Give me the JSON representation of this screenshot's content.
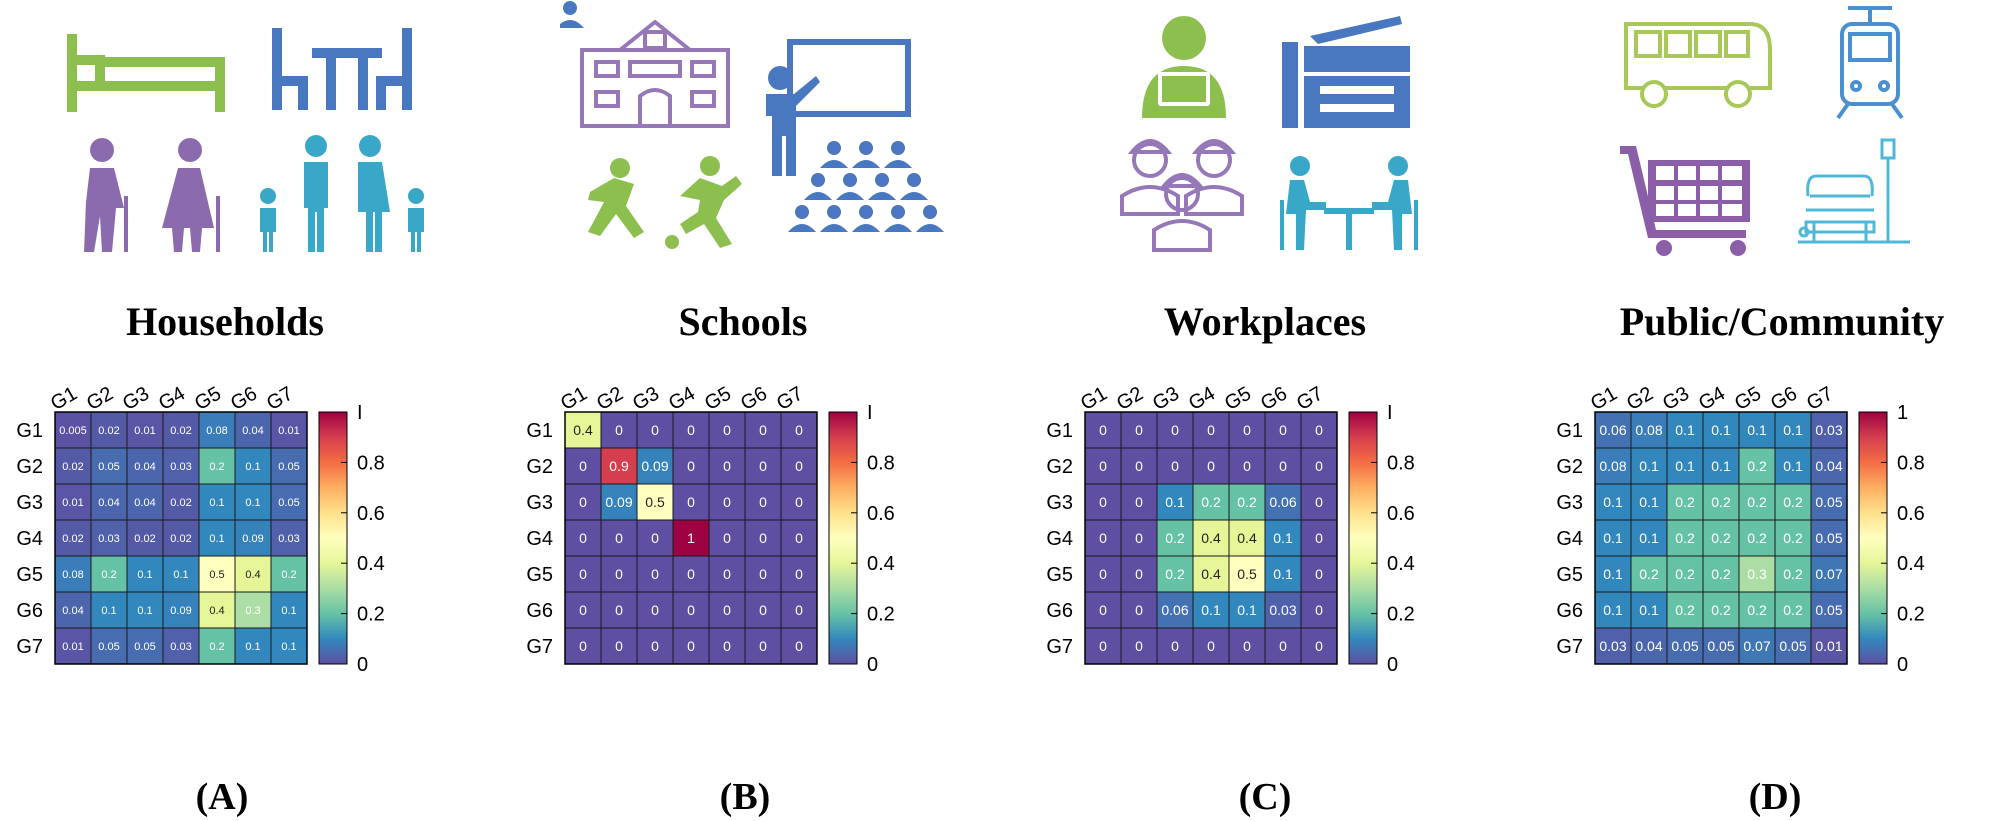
{
  "colors": {
    "householdsIcons": "#8DBF4F",
    "householdsIcons2": "#4A78C0",
    "householdsIcons3": "#8B6AAE",
    "householdsIcons4": "#39A8C8",
    "schoolsIcons": "#9678B8",
    "schoolsIcons2": "#4A78C0",
    "schoolsIcons3": "#8DBF4F",
    "workplacesIcons": "#8DBF4F",
    "workplacesIcons2": "#4A78C0",
    "workplacesIcons3": "#9678B8",
    "workplacesIcons4": "#39A8C8",
    "publicIcons": "#A8C85A",
    "publicIcons2": "#4A8FD0",
    "publicIcons3": "#8B5FA8",
    "publicIcons4": "#4FB8D8"
  },
  "icons": {
    "households": [
      "bed-icon",
      "dining-table-icon",
      "elderly-couple-icon",
      "family-icon"
    ],
    "schools": [
      "school-building-icon",
      "teacher-classroom-icon",
      "kids-playing-football-icon",
      "audience-icon"
    ],
    "workplaces": [
      "programmer-laptop-icon",
      "office-printer-icon",
      "workers-hardhat-icon",
      "meeting-table-icon"
    ],
    "public": [
      "bus-icon",
      "tram-icon",
      "shopping-cart-icon",
      "park-bench-icon"
    ]
  },
  "panels": [
    {
      "title": "Households",
      "caption": "(A)"
    },
    {
      "title": "Schools",
      "caption": "(B)"
    },
    {
      "title": "Workplaces",
      "caption": "(C)"
    },
    {
      "title": "Public/Community",
      "caption": "(D)"
    }
  ],
  "chart_data": [
    {
      "type": "heatmap",
      "title": "Households",
      "x": [
        "G1",
        "G2",
        "G3",
        "G4",
        "G5",
        "G6",
        "G7"
      ],
      "y": [
        "G1",
        "G2",
        "G3",
        "G4",
        "G5",
        "G6",
        "G7"
      ],
      "values": [
        [
          "0.005",
          "0.02",
          "0.01",
          "0.02",
          "0.08",
          "0.04",
          "0.01"
        ],
        [
          "0.02",
          "0.05",
          "0.04",
          "0.03",
          "0.2",
          "0.1",
          "0.05"
        ],
        [
          "0.01",
          "0.04",
          "0.04",
          "0.02",
          "0.1",
          "0.1",
          "0.05"
        ],
        [
          "0.02",
          "0.03",
          "0.02",
          "0.02",
          "0.1",
          "0.09",
          "0.03"
        ],
        [
          "0.08",
          "0.2",
          "0.1",
          "0.1",
          "0.5",
          "0.4",
          "0.2"
        ],
        [
          "0.04",
          "0.1",
          "0.1",
          "0.09",
          "0.4",
          "0.3",
          "0.1"
        ],
        [
          "0.01",
          "0.05",
          "0.05",
          "0.03",
          "0.2",
          "0.1",
          "0.1"
        ]
      ],
      "colorbar_ticks": [
        "0",
        "0.2",
        "0.4",
        "0.6",
        "0.8",
        "I"
      ],
      "colorbar_range": [
        0,
        1
      ],
      "colormap": "spectral-reversed"
    },
    {
      "type": "heatmap",
      "title": "Schools",
      "x": [
        "G1",
        "G2",
        "G3",
        "G4",
        "G5",
        "G6",
        "G7"
      ],
      "y": [
        "G1",
        "G2",
        "G3",
        "G4",
        "G5",
        "G6",
        "G7"
      ],
      "values": [
        [
          "0.4",
          "0",
          "0",
          "0",
          "0",
          "0",
          "0"
        ],
        [
          "0",
          "0.9",
          "0.09",
          "0",
          "0",
          "0",
          "0"
        ],
        [
          "0",
          "0.09",
          "0.5",
          "0",
          "0",
          "0",
          "0"
        ],
        [
          "0",
          "0",
          "0",
          "1",
          "0",
          "0",
          "0"
        ],
        [
          "0",
          "0",
          "0",
          "0",
          "0",
          "0",
          "0"
        ],
        [
          "0",
          "0",
          "0",
          "0",
          "0",
          "0",
          "0"
        ],
        [
          "0",
          "0",
          "0",
          "0",
          "0",
          "0",
          "0"
        ]
      ],
      "colorbar_ticks": [
        "0",
        "0.2",
        "0.4",
        "0.6",
        "0.8",
        "I"
      ],
      "colorbar_range": [
        0,
        1
      ],
      "colormap": "spectral-reversed"
    },
    {
      "type": "heatmap",
      "title": "Workplaces",
      "x": [
        "G1",
        "G2",
        "G3",
        "G4",
        "G5",
        "G6",
        "G7"
      ],
      "y": [
        "G1",
        "G2",
        "G3",
        "G4",
        "G5",
        "G6",
        "G7"
      ],
      "values": [
        [
          "0",
          "0",
          "0",
          "0",
          "0",
          "0",
          "0"
        ],
        [
          "0",
          "0",
          "0",
          "0",
          "0",
          "0",
          "0"
        ],
        [
          "0",
          "0",
          "0.1",
          "0.2",
          "0.2",
          "0.06",
          "0"
        ],
        [
          "0",
          "0",
          "0.2",
          "0.4",
          "0.4",
          "0.1",
          "0"
        ],
        [
          "0",
          "0",
          "0.2",
          "0.4",
          "0.5",
          "0.1",
          "0"
        ],
        [
          "0",
          "0",
          "0.06",
          "0.1",
          "0.1",
          "0.03",
          "0"
        ],
        [
          "0",
          "0",
          "0",
          "0",
          "0",
          "0",
          "0"
        ]
      ],
      "colorbar_ticks": [
        "0",
        "0.2",
        "0.4",
        "0.6",
        "0.8",
        "I"
      ],
      "colorbar_range": [
        0,
        1
      ],
      "colormap": "spectral-reversed"
    },
    {
      "type": "heatmap",
      "title": "Public/Community",
      "x": [
        "G1",
        "G2",
        "G3",
        "G4",
        "G5",
        "G6",
        "G7"
      ],
      "y": [
        "G1",
        "G2",
        "G3",
        "G4",
        "G5",
        "G6",
        "G7"
      ],
      "values": [
        [
          "0.06",
          "0.08",
          "0.1",
          "0.1",
          "0.1",
          "0.1",
          "0.03"
        ],
        [
          "0.08",
          "0.1",
          "0.1",
          "0.1",
          "0.2",
          "0.1",
          "0.04"
        ],
        [
          "0.1",
          "0.1",
          "0.2",
          "0.2",
          "0.2",
          "0.2",
          "0.05"
        ],
        [
          "0.1",
          "0.1",
          "0.2",
          "0.2",
          "0.2",
          "0.2",
          "0.05"
        ],
        [
          "0.1",
          "0.2",
          "0.2",
          "0.2",
          "0.3",
          "0.2",
          "0.07"
        ],
        [
          "0.1",
          "0.1",
          "0.2",
          "0.2",
          "0.2",
          "0.2",
          "0.05"
        ],
        [
          "0.03",
          "0.04",
          "0.05",
          "0.05",
          "0.07",
          "0.05",
          "0.01"
        ]
      ],
      "colorbar_ticks": [
        "0",
        "0.2",
        "0.4",
        "0.6",
        "0.8",
        "1"
      ],
      "colorbar_range": [
        0,
        1
      ],
      "colormap": "spectral-reversed"
    }
  ]
}
